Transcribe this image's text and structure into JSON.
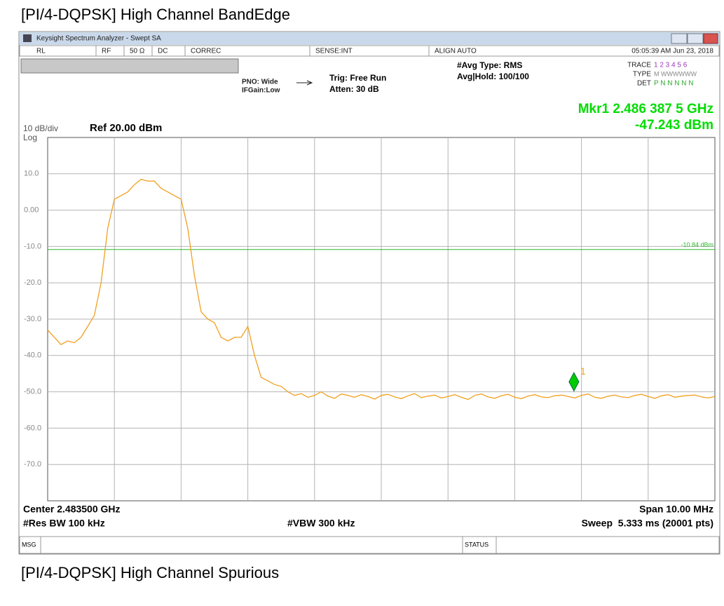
{
  "page": {
    "title": "[PI/4-DQPSK] High Channel BandEdge",
    "caption": "[PI/4-DQPSK] High Channel Spurious"
  },
  "screen": {
    "window_title": "Keysight Spectrum Analyzer - Swept SA",
    "status_row": [
      "RL",
      "RF",
      "50 Ω",
      "DC",
      "CORREC",
      "SENSE:INT",
      "ALIGN AUTO"
    ],
    "datetime": "05:05:39 AM Jun 23, 2018",
    "pno": "PNO: Wide",
    "ifgain": "IFGain:Low",
    "trig": "Trig: Free Run",
    "atten": "Atten: 30 dB",
    "avg_type": "#Avg Type: RMS",
    "avg_hold": "Avg|Hold: 100/100",
    "trace_label": "TRACE",
    "trace_value": "1 2 3 4 5 6",
    "type_label": "TYPE",
    "type_value": "M WWWWWW",
    "det_label": "DET",
    "det_value": "P N N N N N",
    "marker_freq": "Mkr1 2.486 387 5 GHz",
    "marker_level": "-47.243 dBm",
    "scale": "10 dB/div",
    "scale_type": "Log",
    "ref": "Ref 20.00 dBm",
    "center": "Center 2.483500 GHz",
    "span": "Span 10.00 MHz",
    "rbw": "#Res BW 100 kHz",
    "vbw": "#VBW 300 kHz",
    "sweep": "Sweep  5.333 ms (20001 pts)",
    "msg": "MSG",
    "status": "STATUS"
  },
  "chart_data": {
    "type": "line",
    "xlim": [
      2.4785,
      2.4885
    ],
    "ylim": [
      -80,
      20
    ],
    "yticks": [
      {
        "value": 10,
        "label": "10.0"
      },
      {
        "value": 0,
        "label": "0.00"
      },
      {
        "value": -10,
        "label": "-10.0"
      },
      {
        "value": -20,
        "label": "-20.0"
      },
      {
        "value": -30,
        "label": "-30.0"
      },
      {
        "value": -40,
        "label": "-40.0"
      },
      {
        "value": -50,
        "label": "-50.0"
      },
      {
        "value": -60,
        "label": "-60.0"
      },
      {
        "value": -70,
        "label": "-70.0"
      }
    ],
    "grid": true,
    "series": [
      {
        "color": "#f0a020",
        "values": [
          -33,
          -35,
          -37,
          -36,
          -36.5,
          -35,
          -32,
          -29,
          -20,
          -5,
          3,
          4,
          5,
          7,
          8.5,
          8,
          8,
          6,
          5,
          4,
          3,
          -5,
          -18,
          -28,
          -30,
          -31,
          -35,
          -36,
          -35,
          -35,
          -32,
          -40,
          -46,
          -47,
          -48,
          -48.5,
          -50,
          -51,
          -50.5,
          -51.5,
          -51,
          -50,
          -51.2,
          -51.8,
          -50.6,
          -51,
          -51.5,
          -50.8,
          -51.3,
          -52,
          -51,
          -50.7,
          -51.4,
          -51.9,
          -51.1,
          -50.5,
          -51.6,
          -51.2,
          -50.9,
          -51.7,
          -51.3,
          -50.8,
          -51.5,
          -52.1,
          -51,
          -50.6,
          -51.4,
          -51.8,
          -51.1,
          -50.7,
          -51.5,
          -51.9,
          -51.2,
          -50.8,
          -51.4,
          -51.6,
          -51.1,
          -50.9,
          -51.3,
          -51.7,
          -51.0,
          -50.6,
          -51.5,
          -51.8,
          -51.2,
          -50.9,
          -51.4,
          -51.6,
          -51.0,
          -50.7,
          -51.3,
          -51.8,
          -51.1,
          -50.8,
          -51.5,
          -51.2,
          -51.0,
          -50.9,
          -51.4,
          -51.7,
          -51.3
        ]
      }
    ],
    "limit": {
      "value": -10.84,
      "label": "-10.84 dBm",
      "color": "#2db82d"
    },
    "marker": {
      "x": 2.4863875,
      "value": -47.243,
      "label": "1",
      "color": "#00cc00"
    }
  }
}
